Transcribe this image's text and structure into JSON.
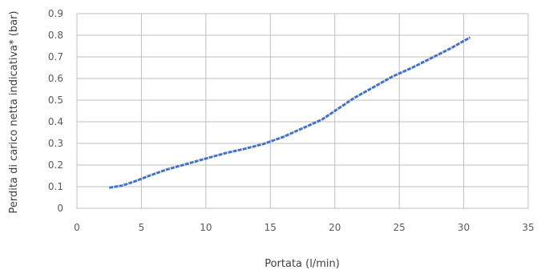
{
  "chart_data": {
    "type": "line",
    "title": "",
    "xlabel": "Portata (l/min)",
    "ylabel": "Perdita di carico netta indicativa* (bar)",
    "xlim": [
      0,
      35
    ],
    "ylim": [
      0,
      0.9
    ],
    "x_ticks": [
      "0",
      "5",
      "10",
      "15",
      "20",
      "25",
      "30",
      "35"
    ],
    "y_ticks": [
      "0",
      "0.1",
      "0.2",
      "0.3",
      "0.4",
      "0.5",
      "0.6",
      "0.7",
      "0.8",
      "0.9"
    ],
    "grid": true,
    "legend": "none",
    "series": [
      {
        "color": "#4472c4",
        "x": [
          2.5,
          3.5,
          4.5,
          5.5,
          7,
          8.5,
          10,
          11.5,
          13,
          14.5,
          16,
          17.5,
          19,
          20,
          21.5,
          23,
          24.5,
          26,
          27.5,
          29,
          30.5
        ],
        "y": [
          0.095,
          0.105,
          0.125,
          0.148,
          0.18,
          0.205,
          0.23,
          0.255,
          0.275,
          0.298,
          0.33,
          0.37,
          0.41,
          0.45,
          0.51,
          0.56,
          0.61,
          0.65,
          0.695,
          0.74,
          0.79
        ]
      }
    ]
  }
}
